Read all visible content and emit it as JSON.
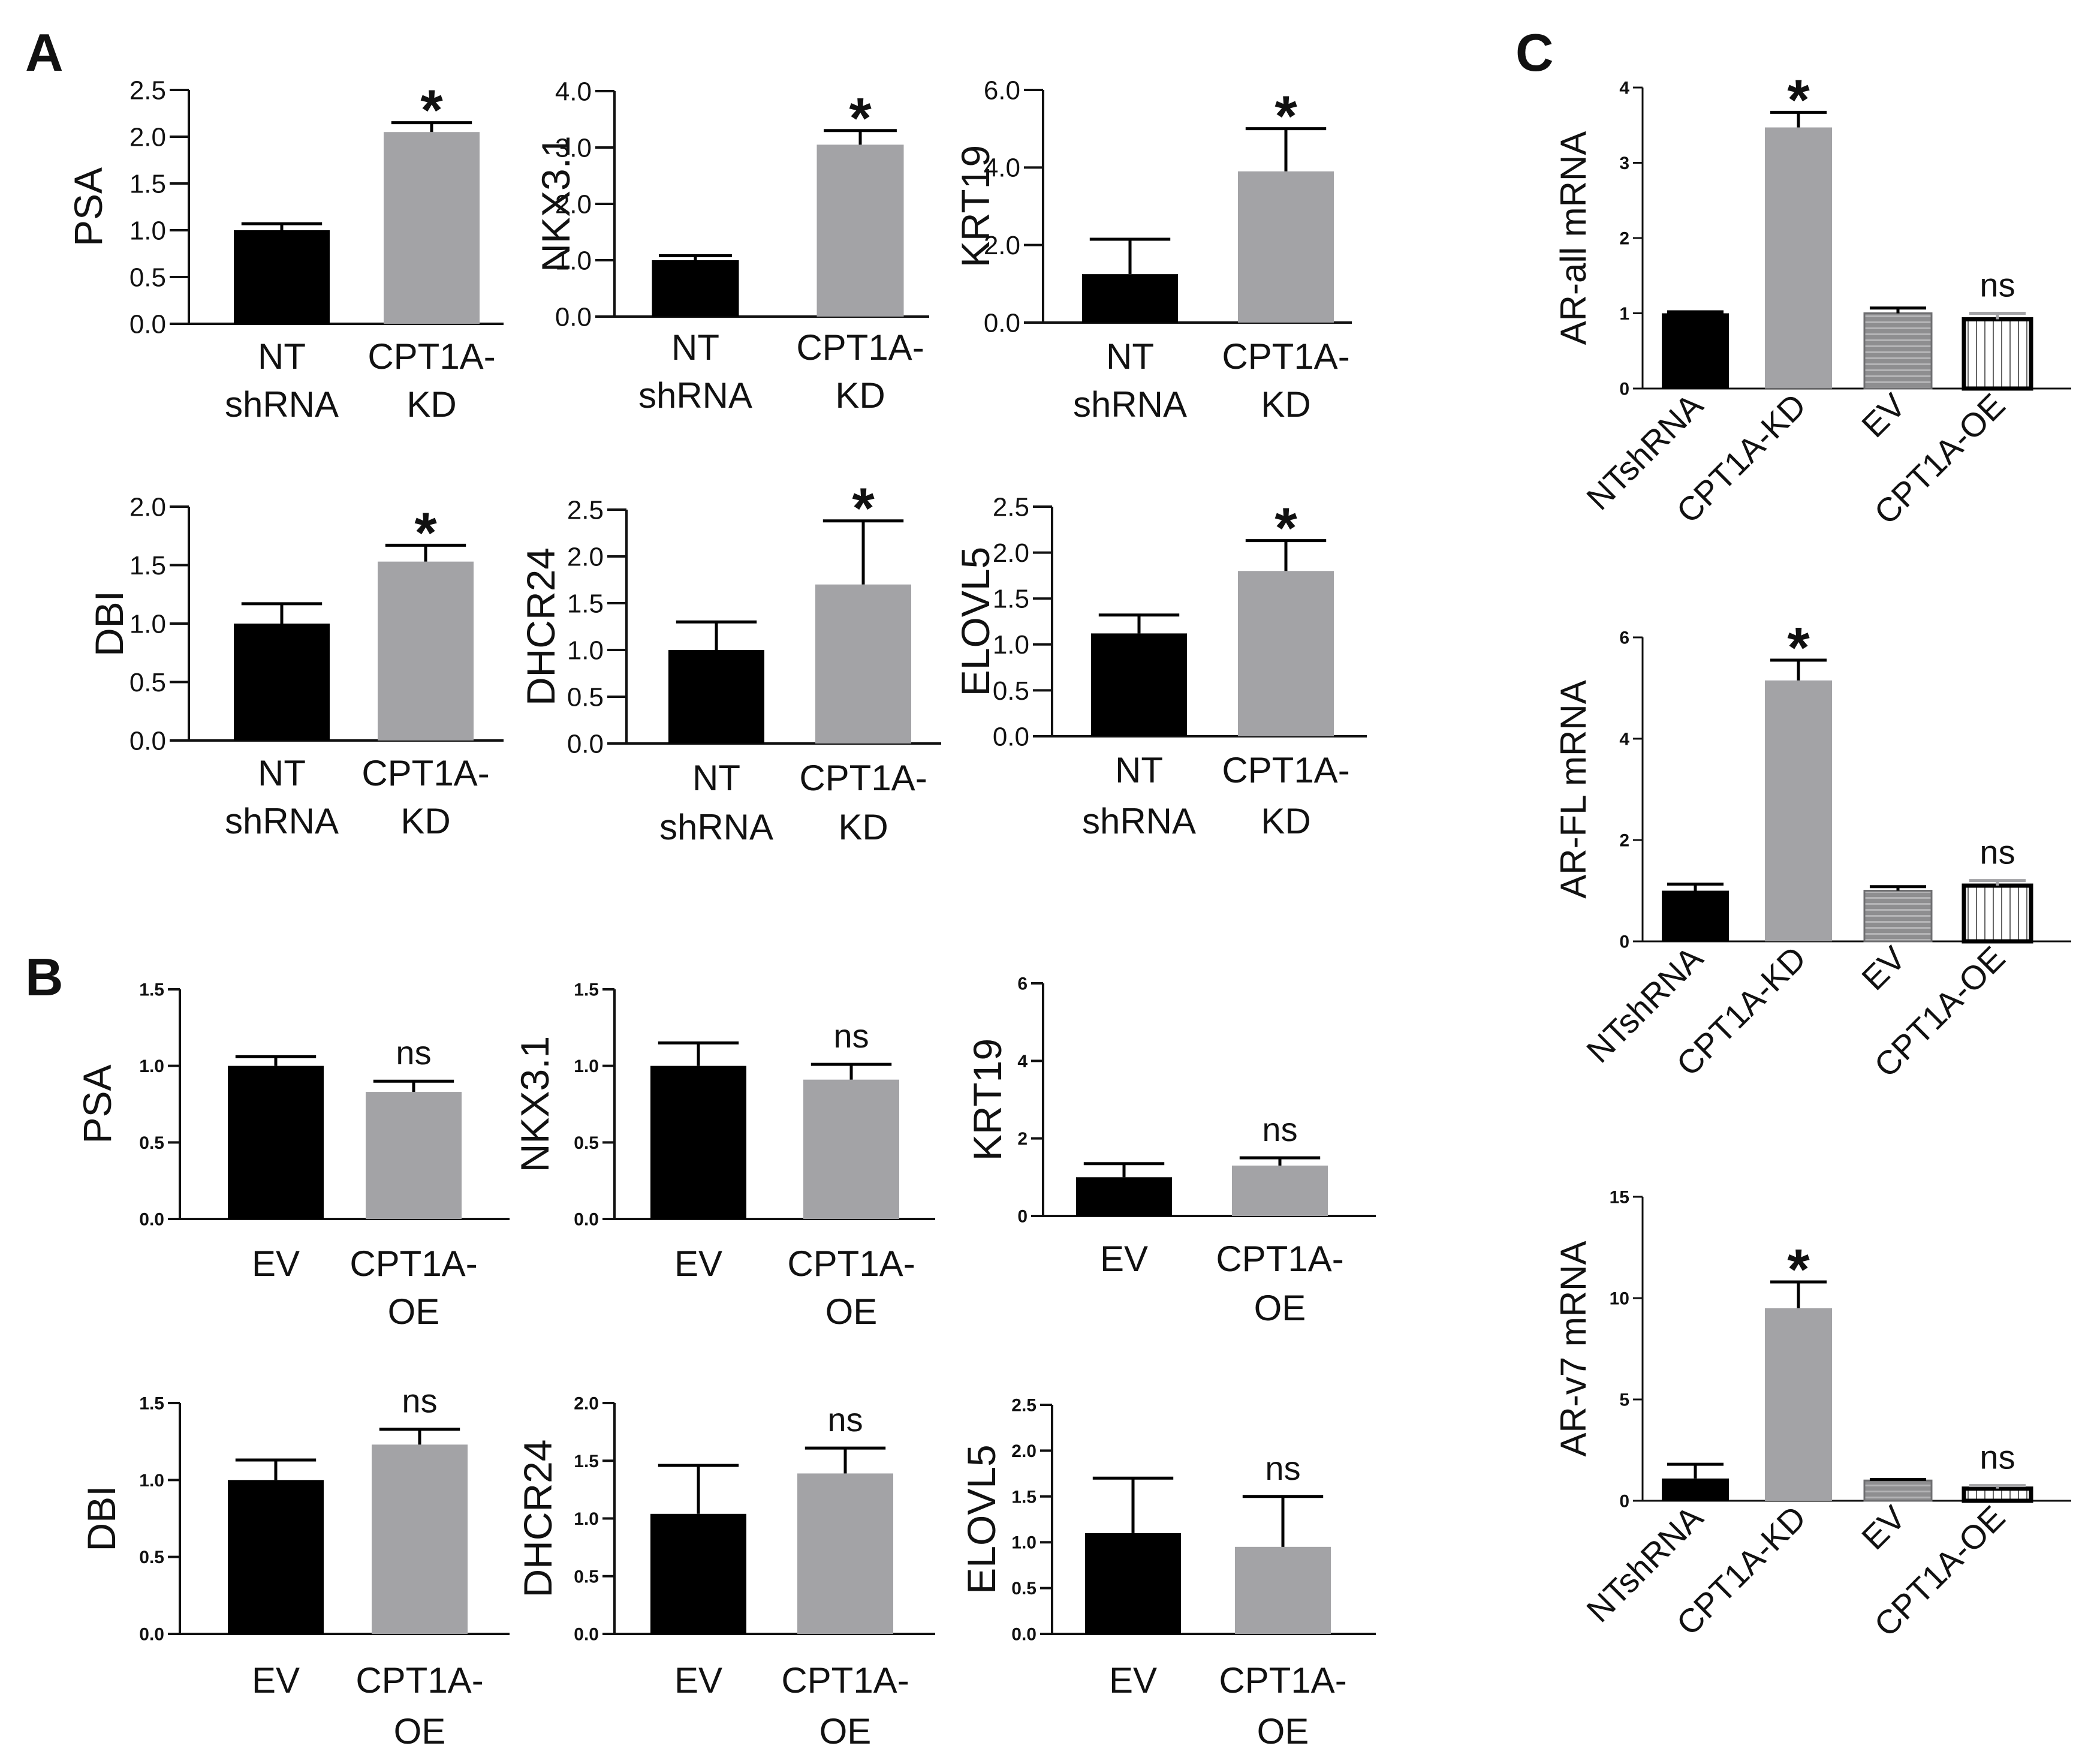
{
  "figure": {
    "panel_labels": [
      "A",
      "B",
      "C"
    ]
  },
  "colors": {
    "control": "#000000",
    "treatment": "#a3a3a6",
    "axis": "#111111"
  },
  "chart_data": [
    {
      "id": "A-PSA",
      "panel": "A",
      "type": "bar",
      "ylabel": "PSA",
      "categories": [
        [
          "NT",
          "shRNA"
        ],
        [
          "CPT1A-",
          "KD"
        ]
      ],
      "values": [
        1.0,
        2.05
      ],
      "errors": [
        0.07,
        0.1
      ],
      "ylim": [
        0,
        2.5
      ],
      "yticks": [
        "0.0",
        "0.5",
        "1.0",
        "1.5",
        "2.0",
        "2.5"
      ],
      "annotations": [
        "",
        "*"
      ],
      "styles": [
        "solid-black",
        "solid-gray"
      ]
    },
    {
      "id": "A-NKX3.1",
      "panel": "A",
      "type": "bar",
      "ylabel": "NKX3.1",
      "categories": [
        [
          "NT",
          "shRNA"
        ],
        [
          "CPT1A-",
          "KD"
        ]
      ],
      "values": [
        1.0,
        3.05
      ],
      "errors": [
        0.08,
        0.25
      ],
      "ylim": [
        0,
        4.0
      ],
      "yticks": [
        "0.0",
        "1.0",
        "2.0",
        "3.0",
        "4.0"
      ],
      "annotations": [
        "",
        "*"
      ],
      "styles": [
        "solid-black",
        "solid-gray"
      ]
    },
    {
      "id": "A-KRT19",
      "panel": "A",
      "type": "bar",
      "ylabel": "KRT19",
      "categories": [
        [
          "NT",
          "shRNA"
        ],
        [
          "CPT1A-",
          "KD"
        ]
      ],
      "values": [
        1.25,
        3.9
      ],
      "errors": [
        0.9,
        1.1
      ],
      "ylim": [
        0,
        6.0
      ],
      "yticks": [
        "0.0",
        "2.0",
        "4.0",
        "6.0"
      ],
      "annotations": [
        "",
        "*"
      ],
      "styles": [
        "solid-black",
        "solid-gray"
      ]
    },
    {
      "id": "A-DBI",
      "panel": "A",
      "type": "bar",
      "ylabel": "DBI",
      "categories": [
        [
          "NT",
          "shRNA"
        ],
        [
          "CPT1A-",
          "KD"
        ]
      ],
      "values": [
        1.0,
        1.53
      ],
      "errors": [
        0.17,
        0.14
      ],
      "ylim": [
        0,
        2.0
      ],
      "yticks": [
        "0.0",
        "0.5",
        "1.0",
        "1.5",
        "2.0"
      ],
      "annotations": [
        "",
        "*"
      ],
      "styles": [
        "solid-black",
        "solid-gray"
      ]
    },
    {
      "id": "A-DHCR24",
      "panel": "A",
      "type": "bar",
      "ylabel": "DHCR24",
      "categories": [
        [
          "NT",
          "shRNA"
        ],
        [
          "CPT1A-",
          "KD"
        ]
      ],
      "values": [
        1.0,
        1.7
      ],
      "errors": [
        0.3,
        0.68
      ],
      "ylim": [
        0,
        2.5
      ],
      "yticks": [
        "0.0",
        "0.5",
        "1.0",
        "1.5",
        "2.0",
        "2.5"
      ],
      "annotations": [
        "",
        "*"
      ],
      "styles": [
        "solid-black",
        "solid-gray"
      ]
    },
    {
      "id": "A-ELOVL5",
      "panel": "A",
      "type": "bar",
      "ylabel": "ELOVL5",
      "categories": [
        [
          "NT",
          "shRNA"
        ],
        [
          "CPT1A-",
          "KD"
        ]
      ],
      "values": [
        1.12,
        1.8
      ],
      "errors": [
        0.2,
        0.33
      ],
      "ylim": [
        0,
        2.5
      ],
      "yticks": [
        "0.0",
        "0.5",
        "1.0",
        "1.5",
        "2.0",
        "2.5"
      ],
      "annotations": [
        "",
        "*"
      ],
      "styles": [
        "solid-black",
        "solid-gray"
      ]
    },
    {
      "id": "B-PSA",
      "panel": "B",
      "type": "bar",
      "ylabel": "PSA",
      "categories": [
        [
          "EV"
        ],
        [
          "CPT1A-",
          "OE"
        ]
      ],
      "values": [
        1.0,
        0.83
      ],
      "errors": [
        0.06,
        0.07
      ],
      "ylim": [
        0,
        1.5
      ],
      "yticks": [
        "0.0",
        "0.5",
        "1.0",
        "1.5"
      ],
      "annotations": [
        "",
        "ns"
      ],
      "styles": [
        "solid-black",
        "solid-gray"
      ]
    },
    {
      "id": "B-NKX3.1",
      "panel": "B",
      "type": "bar",
      "ylabel": "NKX3.1",
      "categories": [
        [
          "EV"
        ],
        [
          "CPT1A-",
          "OE"
        ]
      ],
      "values": [
        1.0,
        0.91
      ],
      "errors": [
        0.15,
        0.1
      ],
      "ylim": [
        0,
        1.5
      ],
      "yticks": [
        "0.0",
        "0.5",
        "1.0",
        "1.5"
      ],
      "annotations": [
        "",
        "ns"
      ],
      "styles": [
        "solid-black",
        "solid-gray"
      ]
    },
    {
      "id": "B-KRT19",
      "panel": "B",
      "type": "bar",
      "ylabel": "KRT19",
      "categories": [
        [
          "EV"
        ],
        [
          "CPT1A-",
          "OE"
        ]
      ],
      "values": [
        1.0,
        1.3
      ],
      "errors": [
        0.35,
        0.2
      ],
      "ylim": [
        0,
        6
      ],
      "yticks": [
        "0",
        "2",
        "4",
        "6"
      ],
      "annotations": [
        "",
        "ns"
      ],
      "styles": [
        "solid-black",
        "solid-gray"
      ]
    },
    {
      "id": "B-DBI",
      "panel": "B",
      "type": "bar",
      "ylabel": "DBI",
      "categories": [
        [
          "EV"
        ],
        [
          "CPT1A-",
          "OE"
        ]
      ],
      "values": [
        1.0,
        1.23
      ],
      "errors": [
        0.13,
        0.1
      ],
      "ylim": [
        0,
        1.5
      ],
      "yticks": [
        "0.0",
        "0.5",
        "1.0",
        "1.5"
      ],
      "annotations": [
        "",
        "ns"
      ],
      "styles": [
        "solid-black",
        "solid-gray"
      ]
    },
    {
      "id": "B-DHCR24",
      "panel": "B",
      "type": "bar",
      "ylabel": "DHCR24",
      "categories": [
        [
          "EV"
        ],
        [
          "CPT1A-",
          "OE"
        ]
      ],
      "values": [
        1.04,
        1.39
      ],
      "errors": [
        0.42,
        0.22
      ],
      "ylim": [
        0,
        2.0
      ],
      "yticks": [
        "0.0",
        "0.5",
        "1.0",
        "1.5",
        "2.0"
      ],
      "annotations": [
        "",
        "ns"
      ],
      "styles": [
        "solid-black",
        "solid-gray"
      ]
    },
    {
      "id": "B-ELOVL5",
      "panel": "B",
      "type": "bar",
      "ylabel": "ELOVL5",
      "categories": [
        [
          "EV"
        ],
        [
          "CPT1A-",
          "OE"
        ]
      ],
      "values": [
        1.1,
        0.95
      ],
      "errors": [
        0.6,
        0.55
      ],
      "ylim": [
        0,
        2.5
      ],
      "yticks": [
        "0.0",
        "0.5",
        "1.0",
        "1.5",
        "2.0",
        "2.5"
      ],
      "annotations": [
        "",
        "ns"
      ],
      "styles": [
        "solid-black",
        "solid-gray"
      ]
    },
    {
      "id": "C-AR-all",
      "panel": "C",
      "type": "bar",
      "ylabel": "AR-all mRNA",
      "categories": [
        [
          "NTshRNA"
        ],
        [
          "CPT1A-KD"
        ],
        [
          "EV"
        ],
        [
          "CPT1A-OE"
        ]
      ],
      "values": [
        1.0,
        3.47,
        1.0,
        0.92
      ],
      "errors": [
        0.02,
        0.2,
        0.07,
        0.08
      ],
      "ylim": [
        0,
        4
      ],
      "yticks": [
        "0",
        "1",
        "2",
        "3",
        "4"
      ],
      "annotations": [
        "",
        "*",
        "",
        "ns"
      ],
      "styles": [
        "solid-black",
        "solid-gray",
        "hstripe-gray",
        "vstripe-white"
      ]
    },
    {
      "id": "C-AR-FL",
      "panel": "C",
      "type": "bar",
      "ylabel": "AR-FL mRNA",
      "categories": [
        [
          "NTshRNA"
        ],
        [
          "CPT1A-KD"
        ],
        [
          "EV"
        ],
        [
          "CPT1A-OE"
        ]
      ],
      "values": [
        1.0,
        5.15,
        1.0,
        1.1
      ],
      "errors": [
        0.13,
        0.4,
        0.08,
        0.1
      ],
      "ylim": [
        0,
        6
      ],
      "yticks": [
        "0",
        "2",
        "4",
        "6"
      ],
      "annotations": [
        "",
        "*",
        "",
        "ns"
      ],
      "styles": [
        "solid-black",
        "solid-gray",
        "hstripe-gray",
        "vstripe-white"
      ]
    },
    {
      "id": "C-AR-v7",
      "panel": "C",
      "type": "bar",
      "ylabel": "AR-v7 mRNA",
      "categories": [
        [
          "NTshRNA"
        ],
        [
          "CPT1A-KD"
        ],
        [
          "EV"
        ],
        [
          "CPT1A-OE"
        ]
      ],
      "values": [
        1.1,
        9.5,
        1.0,
        0.6
      ],
      "errors": [
        0.7,
        1.3,
        0.05,
        0.15
      ],
      "ylim": [
        0,
        15
      ],
      "yticks": [
        "0",
        "5",
        "10",
        "15"
      ],
      "annotations": [
        "",
        "*",
        "",
        "ns"
      ],
      "styles": [
        "solid-black",
        "solid-gray",
        "hstripe-gray",
        "vstripe-white"
      ]
    }
  ]
}
